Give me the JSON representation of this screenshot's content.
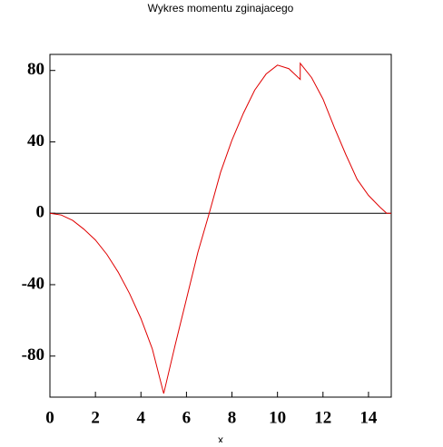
{
  "chart_data": {
    "type": "line",
    "title": "Wykres momentu zginajacego",
    "xlabel": "x",
    "x": [
      0,
      0.5,
      1,
      1.5,
      2,
      2.5,
      3,
      3.5,
      4,
      4.5,
      5,
      5.5,
      6,
      6.5,
      7,
      7.5,
      8,
      8.5,
      9,
      9.5,
      10,
      10.5,
      11,
      11,
      11.5,
      12,
      12.5,
      13,
      13.5,
      14,
      14.5,
      14.8,
      15
    ],
    "series": [
      {
        "color": "#e00000",
        "values": [
          0,
          -1,
          -4,
          -9,
          -15,
          -23,
          -33,
          -45,
          -59,
          -76,
          -101,
          -74,
          -48,
          -22,
          0,
          23,
          41,
          56,
          69,
          78,
          83,
          81,
          75,
          84,
          76,
          64,
          48,
          33,
          19,
          10,
          3.5,
          0,
          0
        ]
      }
    ],
    "xlim": [
      0,
      15
    ],
    "ylim": [
      -103,
      89
    ],
    "xticks": [
      0,
      2,
      4,
      6,
      8,
      10,
      12,
      14
    ],
    "yticks": [
      -80,
      -40,
      0,
      40,
      80
    ],
    "zero_line": true
  }
}
